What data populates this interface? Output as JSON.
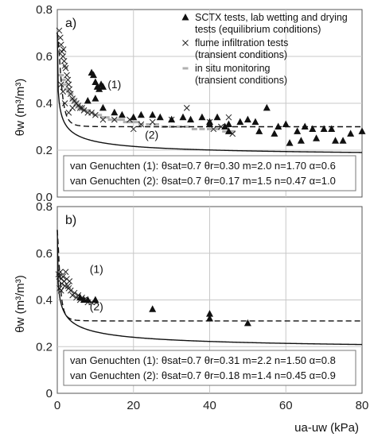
{
  "chart_data": [
    {
      "type": "scatter",
      "panel_label": "a)",
      "ylabel": "θw (m³/m³)",
      "xlim": [
        0,
        80
      ],
      "ylim": [
        0.0,
        0.8
      ],
      "x_ticks": [],
      "y_ticks": [
        "0.0",
        "0.2",
        "0.4",
        "0.6",
        "0.8"
      ],
      "grid": true,
      "legend_position": "top-right",
      "legend": [
        {
          "label": "SCTX tests, lab wetting and drying",
          "label2": "tests (equilibrium conditions)",
          "marker": "triangle"
        },
        {
          "label": "flume infiltration tests",
          "label2": "(transient conditions)",
          "marker": "cross"
        },
        {
          "label": "in situ monitoring",
          "label2": "(transient conditions)",
          "marker": "dash"
        }
      ],
      "curves": [
        {
          "name": "(1)",
          "style": "dashed",
          "theta_sat": 0.7,
          "theta_r": 0.3,
          "m": 2.0,
          "n": 1.7,
          "alpha": 0.6
        },
        {
          "name": "(2)",
          "style": "solid",
          "theta_sat": 0.7,
          "theta_r": 0.17,
          "m": 1.5,
          "n": 0.47,
          "alpha": 1.0
        }
      ],
      "curve_labels": [
        "(1)",
        "(2)"
      ],
      "param_lines": [
        "van Genuchten (1):  θsat=0.7  θr=0.30  m=2.0  n=1.70  α=0.6",
        "van Genuchten (2):  θsat=0.7  θr=0.17  m=1.5  n=0.47  α=1.0"
      ],
      "series": [
        {
          "name": "SCTX tests, lab wetting and drying tests (equilibrium conditions)",
          "marker": "triangle",
          "points": [
            [
              9,
              0.53
            ],
            [
              9.5,
              0.52
            ],
            [
              10,
              0.49
            ],
            [
              10.5,
              0.47
            ],
            [
              11,
              0.46
            ],
            [
              11.5,
              0.48
            ],
            [
              12,
              0.47
            ],
            [
              10,
              0.42
            ],
            [
              12,
              0.38
            ],
            [
              8,
              0.41
            ],
            [
              15,
              0.36
            ],
            [
              17,
              0.35
            ],
            [
              20,
              0.34
            ],
            [
              22,
              0.35
            ],
            [
              25,
              0.35
            ],
            [
              27,
              0.34
            ],
            [
              30,
              0.33
            ],
            [
              33,
              0.34
            ],
            [
              35,
              0.33
            ],
            [
              38,
              0.34
            ],
            [
              40,
              0.32
            ],
            [
              40,
              0.31
            ],
            [
              42,
              0.34
            ],
            [
              44,
              0.3
            ],
            [
              45,
              0.28
            ],
            [
              45,
              0.31
            ],
            [
              48,
              0.32
            ],
            [
              50,
              0.33
            ],
            [
              52,
              0.32
            ],
            [
              53,
              0.28
            ],
            [
              55,
              0.38
            ],
            [
              57,
              0.27
            ],
            [
              58,
              0.3
            ],
            [
              60,
              0.31
            ],
            [
              61,
              0.23
            ],
            [
              63,
              0.28
            ],
            [
              64,
              0.24
            ],
            [
              65,
              0.3
            ],
            [
              67,
              0.29
            ],
            [
              68,
              0.25
            ],
            [
              70,
              0.29
            ],
            [
              72,
              0.29
            ],
            [
              73,
              0.24
            ],
            [
              75,
              0.24
            ],
            [
              77,
              0.27
            ],
            [
              80,
              0.28
            ]
          ]
        },
        {
          "name": "flume infiltration tests (transient conditions)",
          "marker": "cross",
          "points": [
            [
              0.5,
              0.71
            ],
            [
              0.8,
              0.68
            ],
            [
              1,
              0.65
            ],
            [
              1.2,
              0.62
            ],
            [
              1.5,
              0.6
            ],
            [
              1.6,
              0.63
            ],
            [
              1.8,
              0.58
            ],
            [
              2,
              0.56
            ],
            [
              2.2,
              0.55
            ],
            [
              2.5,
              0.52
            ],
            [
              2.8,
              0.5
            ],
            [
              3,
              0.48
            ],
            [
              3.2,
              0.46
            ],
            [
              3.5,
              0.44
            ],
            [
              4,
              0.42
            ],
            [
              4.5,
              0.41
            ],
            [
              5,
              0.4
            ],
            [
              5.5,
              0.39
            ],
            [
              6,
              0.38
            ],
            [
              6.5,
              0.38
            ],
            [
              7,
              0.37
            ],
            [
              8,
              0.36
            ],
            [
              9,
              0.36
            ],
            [
              10,
              0.35
            ],
            [
              12,
              0.33
            ],
            [
              15,
              0.33
            ],
            [
              19,
              0.33
            ],
            [
              20,
              0.29
            ],
            [
              22,
              0.31
            ],
            [
              25,
              0.32
            ],
            [
              30,
              0.33
            ],
            [
              34,
              0.38
            ],
            [
              40,
              0.32
            ],
            [
              41,
              0.29
            ],
            [
              43,
              0.3
            ],
            [
              45,
              0.34
            ],
            [
              46,
              0.27
            ],
            [
              3,
              0.36
            ],
            [
              4,
              0.38
            ],
            [
              2,
              0.4
            ],
            [
              1.5,
              0.45
            ],
            [
              1,
              0.48
            ]
          ]
        },
        {
          "name": "in situ monitoring (transient conditions)",
          "marker": "dash",
          "points": [
            [
              1,
              0.52
            ],
            [
              1.5,
              0.5
            ],
            [
              2,
              0.48
            ],
            [
              2.5,
              0.46
            ],
            [
              3,
              0.45
            ],
            [
              3.5,
              0.44
            ],
            [
              4,
              0.42
            ],
            [
              4.5,
              0.41
            ],
            [
              5,
              0.4
            ],
            [
              5.5,
              0.39
            ],
            [
              6,
              0.38
            ],
            [
              6.5,
              0.38
            ],
            [
              7,
              0.37
            ],
            [
              8,
              0.37
            ],
            [
              9,
              0.36
            ],
            [
              10,
              0.35
            ],
            [
              11,
              0.35
            ],
            [
              12,
              0.34
            ],
            [
              13,
              0.34
            ],
            [
              14,
              0.33
            ],
            [
              15,
              0.33
            ],
            [
              16,
              0.33
            ],
            [
              17,
              0.33
            ],
            [
              18,
              0.32
            ],
            [
              19,
              0.32
            ],
            [
              20,
              0.32
            ],
            [
              21,
              0.32
            ],
            [
              22,
              0.31
            ],
            [
              24,
              0.31
            ],
            [
              26,
              0.31
            ],
            [
              28,
              0.3
            ],
            [
              30,
              0.3
            ],
            [
              32,
              0.3
            ],
            [
              34,
              0.3
            ],
            [
              36,
              0.29
            ],
            [
              38,
              0.29
            ],
            [
              40,
              0.29
            ],
            [
              42,
              0.29
            ],
            [
              44,
              0.28
            ],
            [
              46,
              0.28
            ]
          ]
        }
      ]
    },
    {
      "type": "scatter",
      "panel_label": "b)",
      "xlabel": "ua-uw (kPa)",
      "ylabel": "θw (m³/m³)",
      "xlim": [
        0,
        80
      ],
      "ylim": [
        0,
        0.8
      ],
      "x_ticks": [
        "0",
        "20",
        "40",
        "60",
        "80"
      ],
      "y_ticks": [
        "0",
        "0.2",
        "0.4",
        "0.6",
        "0.8"
      ],
      "grid": true,
      "curves": [
        {
          "name": "(1)",
          "style": "dashed",
          "theta_sat": 0.7,
          "theta_r": 0.31,
          "m": 2.2,
          "n": 1.5,
          "alpha": 0.8
        },
        {
          "name": "(2)",
          "style": "solid",
          "theta_sat": 0.7,
          "theta_r": 0.18,
          "m": 1.4,
          "n": 0.45,
          "alpha": 0.9
        }
      ],
      "curve_labels": [
        "(1)",
        "(2)"
      ],
      "param_lines": [
        "van Genuchten (1):  θsat=0.7  θr=0.31  m=2.2  n=1.50  α=0.8",
        "van Genuchten (2):  θsat=0.7  θr=0.18  m=1.4  n=0.45  α=0.9"
      ],
      "series": [
        {
          "name": "SCTX tests, lab wetting and drying tests (equilibrium conditions)",
          "marker": "triangle",
          "points": [
            [
              6,
              0.41
            ],
            [
              7,
              0.4
            ],
            [
              8,
              0.4
            ],
            [
              10,
              0.4
            ],
            [
              25,
              0.36
            ],
            [
              40,
              0.34
            ],
            [
              40,
              0.32
            ],
            [
              50,
              0.3
            ]
          ]
        },
        {
          "name": "flume infiltration tests (transient conditions)",
          "marker": "cross",
          "points": [
            [
              0.3,
              0.51
            ],
            [
              0.5,
              0.5
            ],
            [
              0.8,
              0.52
            ],
            [
              1,
              0.49
            ],
            [
              1.2,
              0.47
            ],
            [
              1.5,
              0.5
            ],
            [
              1.8,
              0.48
            ],
            [
              2,
              0.46
            ],
            [
              2.2,
              0.52
            ],
            [
              2.5,
              0.49
            ],
            [
              2.8,
              0.46
            ],
            [
              3,
              0.45
            ],
            [
              3.2,
              0.48
            ],
            [
              3.5,
              0.44
            ],
            [
              4,
              0.42
            ],
            [
              4.5,
              0.43
            ],
            [
              5,
              0.41
            ],
            [
              5.5,
              0.42
            ],
            [
              6,
              0.4
            ],
            [
              6.5,
              0.41
            ],
            [
              7,
              0.4
            ],
            [
              8,
              0.39
            ],
            [
              9,
              0.39
            ],
            [
              0.6,
              0.45
            ],
            [
              1,
              0.44
            ]
          ]
        }
      ]
    }
  ]
}
